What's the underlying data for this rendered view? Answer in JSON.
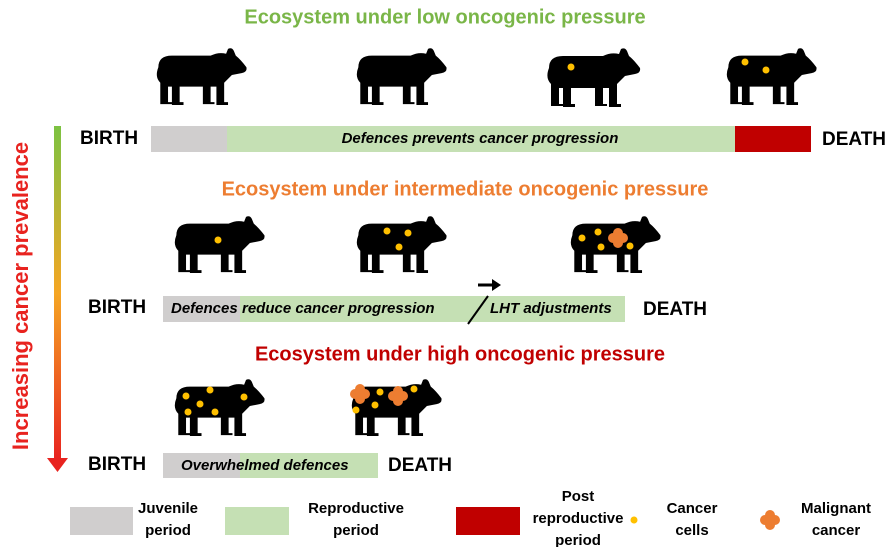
{
  "axis_label": "Increasing cancer prevalence",
  "sections": [
    {
      "title": "Ecosystem under low oncogenic pressure",
      "birth": "BIRTH",
      "death": "DEATH",
      "bar_text": "Defences prevents cancer progression"
    },
    {
      "title": "Ecosystem under intermediate oncogenic pressure",
      "birth": "BIRTH",
      "death": "DEATH",
      "bar_texts": [
        "Defences",
        "reduce cancer progression",
        "LHT adjustments"
      ]
    },
    {
      "title": "Ecosystem under high oncogenic pressure",
      "birth": "BIRTH",
      "death": "DEATH",
      "bar_text": "Overwhelmed defences"
    }
  ],
  "legend": [
    {
      "lines": [
        "Juvenile",
        "period"
      ]
    },
    {
      "lines": [
        "Reproductive",
        "period"
      ]
    },
    {
      "lines": [
        "Post",
        "reproductive",
        "period"
      ]
    },
    {
      "lines": [
        "Cancer",
        "cells"
      ]
    },
    {
      "lines": [
        "Malignant",
        "cancer"
      ]
    }
  ]
}
